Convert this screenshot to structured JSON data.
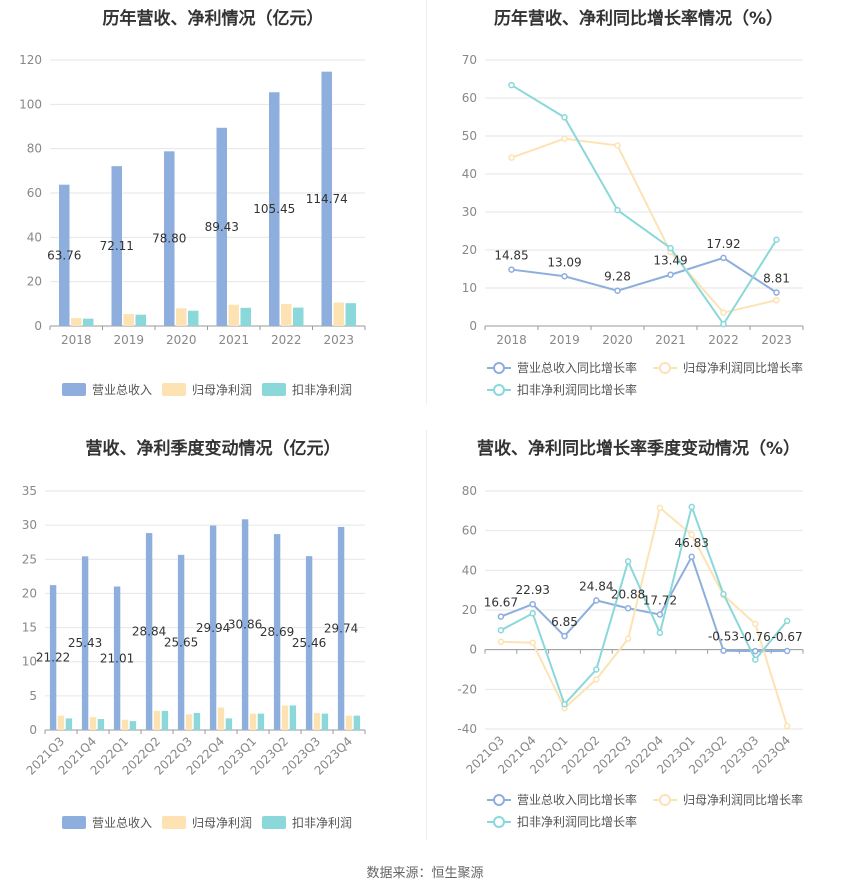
{
  "source": "数据来源：恒生聚源",
  "colors": {
    "revenue": "#8eaedd",
    "net_profit": "#fde3b4",
    "deducted_profit": "#8ad8da",
    "grid": "#e6e6e6",
    "axis_text": "#888888"
  },
  "chart_data": [
    {
      "type": "bar",
      "title": "历年营收、净利情况（亿元）",
      "categories": [
        "2018",
        "2019",
        "2020",
        "2021",
        "2022",
        "2023"
      ],
      "ylim": [
        0,
        120
      ],
      "yticks": [
        0,
        20,
        40,
        60,
        80,
        100,
        120
      ],
      "series": [
        {
          "name": "营业总收入",
          "values": [
            63.76,
            72.11,
            78.8,
            89.43,
            105.45,
            114.74
          ],
          "labels": [
            "63.76",
            "72.11",
            "78.80",
            "89.43",
            "105.45",
            "114.74"
          ]
        },
        {
          "name": "归母净利润",
          "values": [
            3.6,
            5.4,
            8.0,
            9.6,
            9.9,
            10.6
          ]
        },
        {
          "name": "扣非净利润",
          "values": [
            3.3,
            5.1,
            6.9,
            8.2,
            8.3,
            10.3
          ]
        }
      ],
      "legend": "bottom"
    },
    {
      "type": "line",
      "title": "历年营收、净利同比增长率情况（%）",
      "categories": [
        "2018",
        "2019",
        "2020",
        "2021",
        "2022",
        "2023"
      ],
      "ylim": [
        0,
        70
      ],
      "yticks": [
        0,
        10,
        20,
        30,
        40,
        50,
        60,
        70
      ],
      "series": [
        {
          "name": "营业总收入同比增长率",
          "values": [
            14.85,
            13.09,
            9.28,
            13.49,
            17.92,
            8.81
          ],
          "labels": [
            "14.85",
            "13.09",
            "9.28",
            "13.49",
            "17.92",
            "8.81"
          ]
        },
        {
          "name": "归母净利润同比增长率",
          "values": [
            44.3,
            49.3,
            47.5,
            19.5,
            3.5,
            6.8
          ]
        },
        {
          "name": "扣非净利润同比增长率",
          "values": [
            63.4,
            54.9,
            30.5,
            20.5,
            0.5,
            22.7
          ]
        }
      ],
      "legend": "bottom"
    },
    {
      "type": "bar",
      "title": "营收、净利季度变动情况（亿元）",
      "categories": [
        "2021Q3",
        "2021Q4",
        "2022Q1",
        "2022Q2",
        "2022Q3",
        "2022Q4",
        "2023Q1",
        "2023Q2",
        "2023Q3",
        "2023Q4"
      ],
      "ylim": [
        0,
        35
      ],
      "yticks": [
        0,
        5,
        10,
        15,
        20,
        25,
        30,
        35
      ],
      "series": [
        {
          "name": "营业总收入",
          "values": [
            21.22,
            25.43,
            21.01,
            28.84,
            25.65,
            29.94,
            30.86,
            28.69,
            25.46,
            29.74
          ],
          "labels": [
            "21.22",
            "25.43",
            "21.01",
            "28.84",
            "25.65",
            "29.94",
            "30.86",
            "28.69",
            "25.46",
            "29.74"
          ]
        },
        {
          "name": "归母净利润",
          "values": [
            2.1,
            1.9,
            1.5,
            2.8,
            2.3,
            3.3,
            2.4,
            3.6,
            2.5,
            2.1
          ]
        },
        {
          "name": "扣非净利润",
          "values": [
            1.7,
            1.6,
            1.3,
            2.8,
            2.5,
            1.7,
            2.4,
            3.6,
            2.4,
            2.1
          ]
        }
      ],
      "legend": "bottom"
    },
    {
      "type": "line",
      "title": "营收、净利同比增长率季度变动情况（%）",
      "categories": [
        "2021Q3",
        "2021Q4",
        "2022Q1",
        "2022Q2",
        "2022Q3",
        "2022Q4",
        "2023Q1",
        "2023Q2",
        "2023Q3",
        "2023Q4"
      ],
      "ylim": [
        -40,
        80
      ],
      "yticks": [
        -40,
        -20,
        0,
        20,
        40,
        60,
        80
      ],
      "series": [
        {
          "name": "营业总收入同比增长率",
          "values": [
            16.67,
            22.93,
            6.85,
            24.84,
            20.88,
            17.72,
            46.83,
            -0.53,
            -0.76,
            -0.67
          ],
          "labels": [
            "16.67",
            "22.93",
            "6.85",
            "24.84",
            "20.88",
            "17.72",
            "46.83",
            "-0.53",
            "-0.76",
            "-0.67"
          ]
        },
        {
          "name": "归母净利润同比增长率",
          "values": [
            4,
            3.5,
            -29.5,
            -15,
            5.5,
            71.5,
            58,
            27.5,
            13,
            -38.5
          ]
        },
        {
          "name": "扣非净利润同比增长率",
          "values": [
            9.8,
            18.3,
            -27.5,
            -10,
            44.5,
            8.5,
            72,
            28,
            -5,
            14.5
          ]
        }
      ],
      "legend": "bottom"
    }
  ]
}
